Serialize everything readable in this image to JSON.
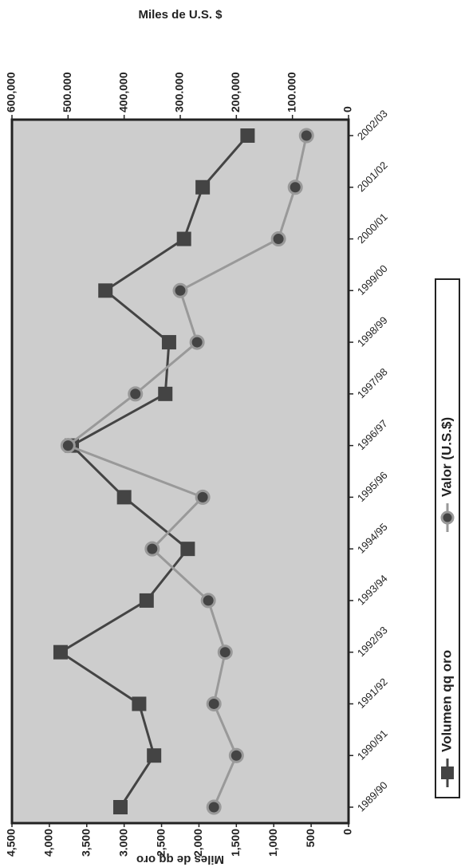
{
  "chart_data": {
    "type": "line",
    "categories": [
      "1989/90",
      "1990/91",
      "1991/92",
      "1992/93",
      "1993/94",
      "1994/95",
      "1995/96",
      "1996/97",
      "1997/98",
      "1998/99",
      "1999/00",
      "2000/01",
      "2001/02",
      "2002/03"
    ],
    "series": [
      {
        "name": "Volumen qq oro",
        "color": "#444444",
        "marker": "square",
        "axis": "y",
        "values": [
          3050,
          2600,
          2800,
          3850,
          2700,
          2150,
          3000,
          3700,
          2450,
          2400,
          3250,
          2200,
          1950,
          1350
        ]
      },
      {
        "name": "Valor (U.S.$)",
        "color": "#999999",
        "marker": "circle",
        "axis": "y2",
        "values": [
          240000,
          200000,
          240000,
          220000,
          250000,
          350000,
          260000,
          500000,
          380000,
          270000,
          300000,
          125000,
          95000,
          75000
        ]
      }
    ],
    "ylabel": "Miles de qq oro",
    "y2label": "Miles de U.S. $",
    "ylim": [
      0,
      4500
    ],
    "yticks": [
      0,
      500,
      {
        "value": 1000,
        "label": "1,000"
      },
      {
        "value": 1500,
        "label": "1,500"
      },
      {
        "value": 2000,
        "label": "2,000"
      },
      {
        "value": 2500,
        "label": "2,500"
      },
      {
        "value": 3000,
        "label": "3.000"
      },
      {
        "value": 3500,
        "label": "3,500"
      },
      {
        "value": 4000,
        "label": "4,000"
      },
      {
        "value": 4500,
        "label": "4,500"
      }
    ],
    "y2lim": [
      0,
      600000
    ],
    "y2ticks": [
      0,
      {
        "value": 100000,
        "label": "100.000"
      },
      {
        "value": 200000,
        "label": "200,000"
      },
      {
        "value": 300000,
        "label": "300.000"
      },
      {
        "value": 400000,
        "label": "400,000"
      },
      {
        "value": 500000,
        "label": "500.000"
      },
      {
        "value": 600000,
        "label": "600,000"
      }
    ]
  }
}
